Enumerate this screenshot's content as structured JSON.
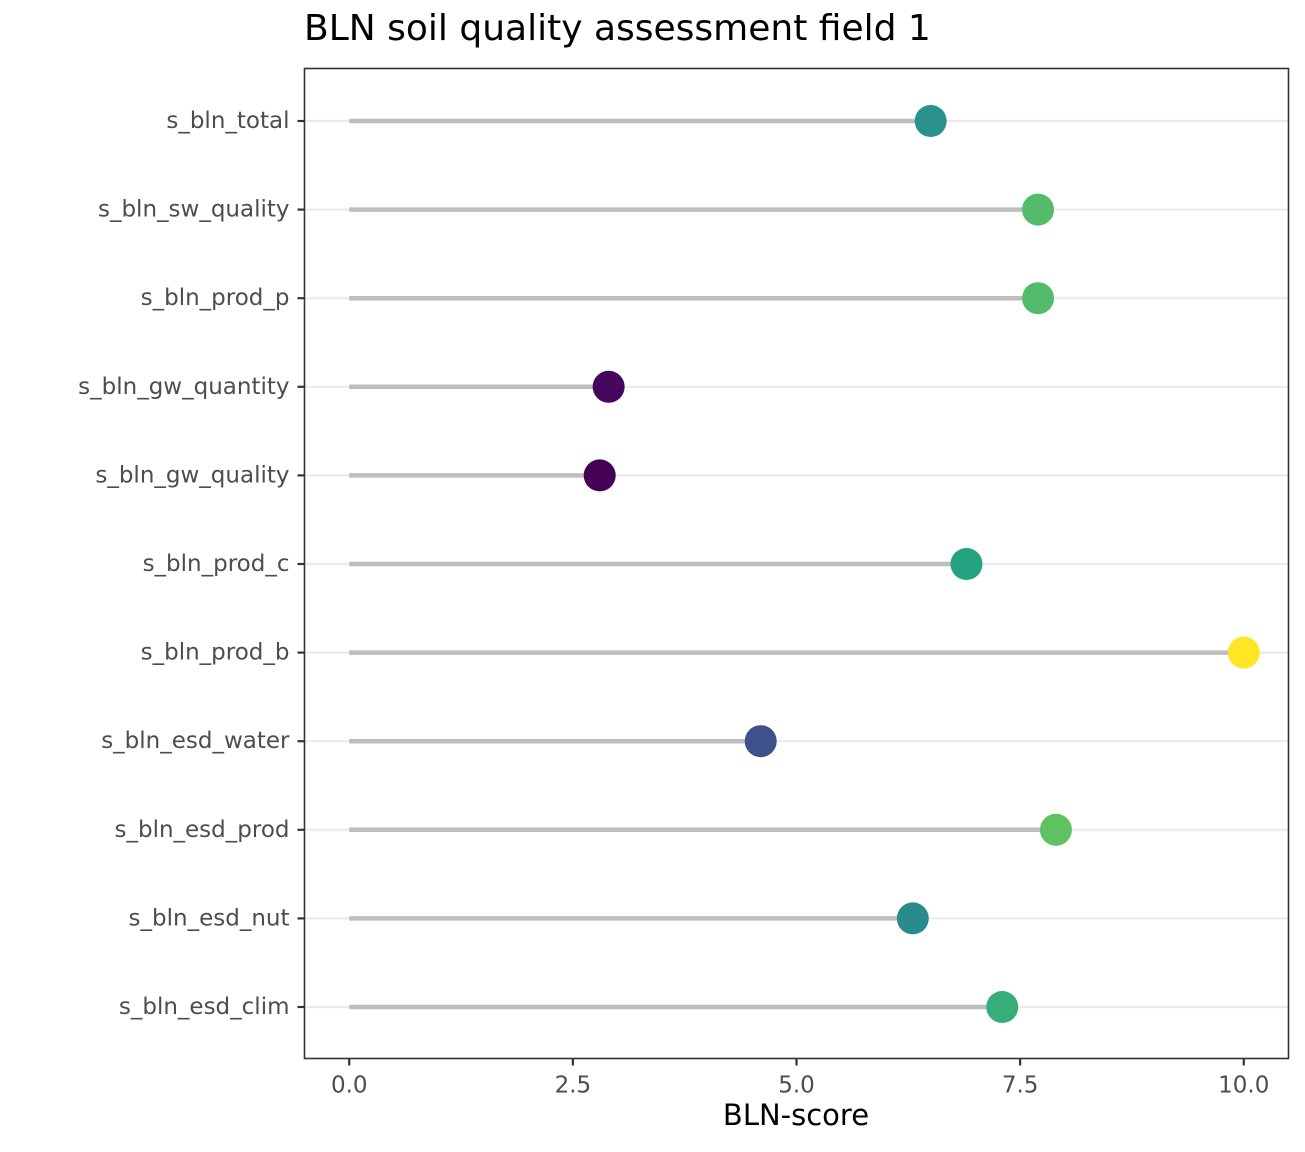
{
  "chart_data": {
    "type": "lollipop",
    "title": "BLN soil quality assessment field 1",
    "xlabel": "BLN-score",
    "ylabel": "",
    "xlim": [
      -0.5,
      10.5
    ],
    "xticks": [
      0.0,
      2.5,
      5.0,
      7.5,
      10.0
    ],
    "xtick_labels": [
      "0.0",
      "2.5",
      "5.0",
      "7.5",
      "10.0"
    ],
    "grid": "horizontal major lines",
    "legend": "none",
    "categories": [
      "s_bln_total",
      "s_bln_sw_quality",
      "s_bln_prod_p",
      "s_bln_gw_quantity",
      "s_bln_gw_quality",
      "s_bln_prod_c",
      "s_bln_prod_b",
      "s_bln_esd_water",
      "s_bln_esd_prod",
      "s_bln_esd_nut",
      "s_bln_esd_clim"
    ],
    "values": [
      6.5,
      7.7,
      7.7,
      2.9,
      2.8,
      6.9,
      10.0,
      4.6,
      7.9,
      6.3,
      7.3
    ],
    "point_colors": [
      "#2A918B",
      "#53BB6A",
      "#53BB6A",
      "#46085C",
      "#440154",
      "#24A17F",
      "#FDE725",
      "#3E518A",
      "#5EC262",
      "#2A8B8D",
      "#37AD79"
    ],
    "stem_color": "#BEBEBE",
    "gridline_color": "#EBEBEB"
  }
}
